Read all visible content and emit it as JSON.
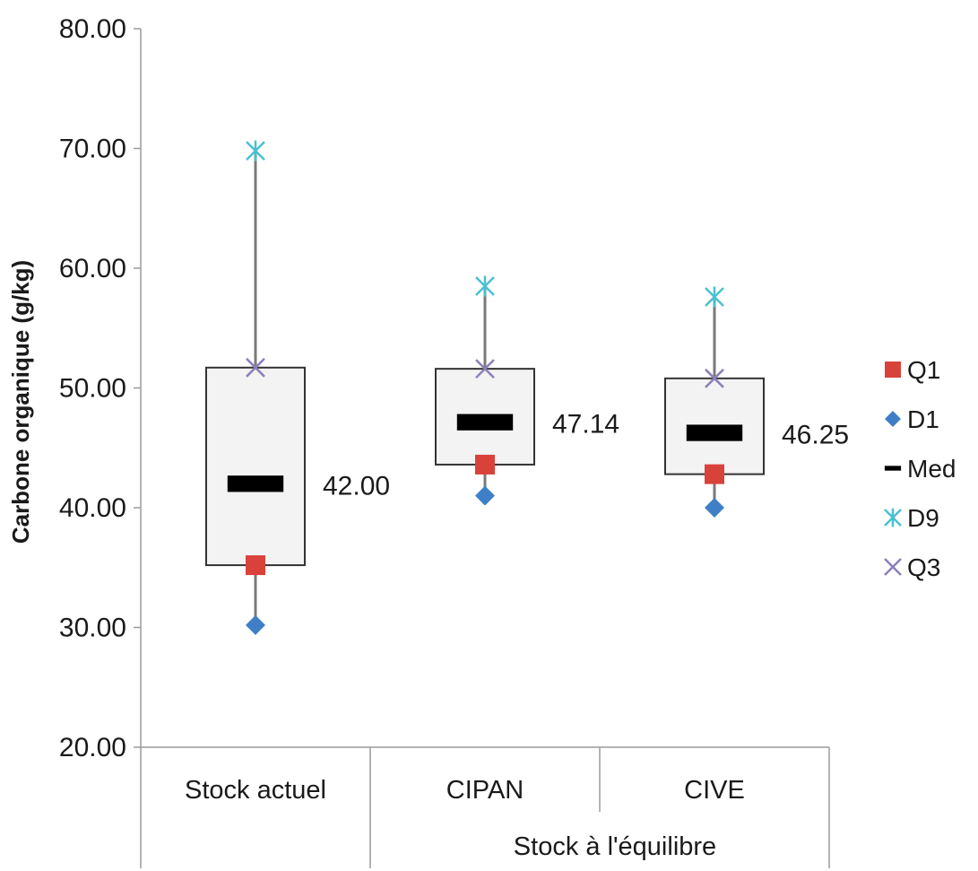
{
  "chart_data": {
    "type": "box",
    "ylabel": "Carbone organique (g/kg)",
    "ylim": [
      20,
      80
    ],
    "ytick_step": 10,
    "ytick_labels": [
      "20.00",
      "30.00",
      "40.00",
      "50.00",
      "60.00",
      "70.00",
      "80.00"
    ],
    "categories": [
      "Stock actuel",
      "CIPAN",
      "CIVE"
    ],
    "group_label": "Stock à l'équilibre",
    "boxes": [
      {
        "category": "Stock actuel",
        "D1": 30.2,
        "Q1": 35.2,
        "Med": 42.0,
        "Q3": 51.7,
        "D9": 69.8,
        "label": "42.00"
      },
      {
        "category": "CIPAN",
        "D1": 41.0,
        "Q1": 43.6,
        "Med": 47.14,
        "Q3": 51.6,
        "D9": 58.5,
        "label": "47.14"
      },
      {
        "category": "CIVE",
        "D1": 40.0,
        "Q1": 42.8,
        "Med": 46.25,
        "Q3": 50.8,
        "D9": 57.6,
        "label": "46.25"
      }
    ],
    "legend": [
      {
        "key": "Q1",
        "label": "Q1",
        "marker": "square",
        "color": "#d9423b"
      },
      {
        "key": "D1",
        "label": "D1",
        "marker": "diamond",
        "color": "#3f7fc8"
      },
      {
        "key": "Med",
        "label": "Med",
        "marker": "dash",
        "color": "#000000"
      },
      {
        "key": "D9",
        "label": "D9",
        "marker": "star",
        "color": "#4bbfd2"
      },
      {
        "key": "Q3",
        "label": "Q3",
        "marker": "x",
        "color": "#8d7fba"
      }
    ],
    "legend_position": "right",
    "grid": false,
    "colors": {
      "box_fill": "#f3f3f3",
      "box_stroke": "#333333",
      "whisker": "#7a7a7a",
      "axis": "#9a9a9a"
    }
  }
}
